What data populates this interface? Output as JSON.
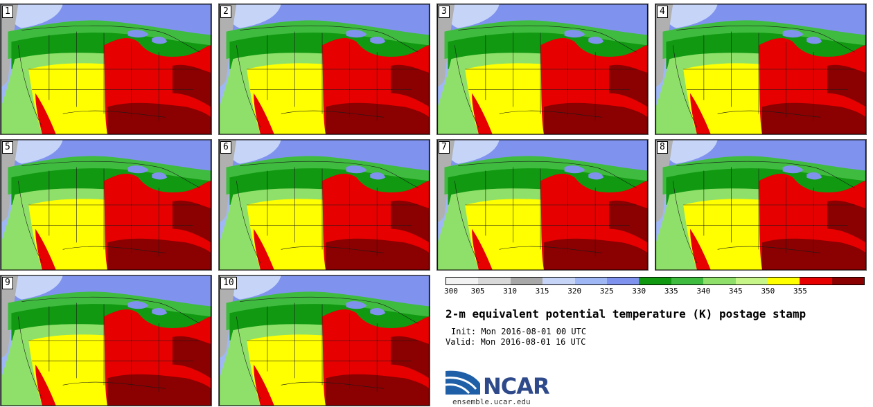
{
  "panels": [
    {
      "number": "1"
    },
    {
      "number": "2"
    },
    {
      "number": "3"
    },
    {
      "number": "4"
    },
    {
      "number": "5"
    },
    {
      "number": "6"
    },
    {
      "number": "7"
    },
    {
      "number": "8"
    },
    {
      "number": "9"
    },
    {
      "number": "10"
    }
  ],
  "colorbar": {
    "ticks": [
      "300",
      "305",
      "310",
      "315",
      "320",
      "325",
      "330",
      "335",
      "340",
      "345",
      "350",
      "355"
    ],
    "colors": [
      "#f2f2f2",
      "#d9d9d9",
      "#a8a8a8",
      "#c6d4f8",
      "#9fb8f5",
      "#7f93ee",
      "#119911",
      "#3fbb3f",
      "#8fe06a",
      "#c8f58a",
      "#ffff00",
      "#e60000",
      "#8b0000"
    ]
  },
  "title": "2-m equivalent potential temperature (K) postage stamp",
  "init": "Init: Mon 2016-08-01 00 UTC",
  "valid": "Valid: Mon 2016-08-01 16 UTC",
  "logo": {
    "text": "NCAR",
    "url": "ensemble.ucar.edu"
  }
}
